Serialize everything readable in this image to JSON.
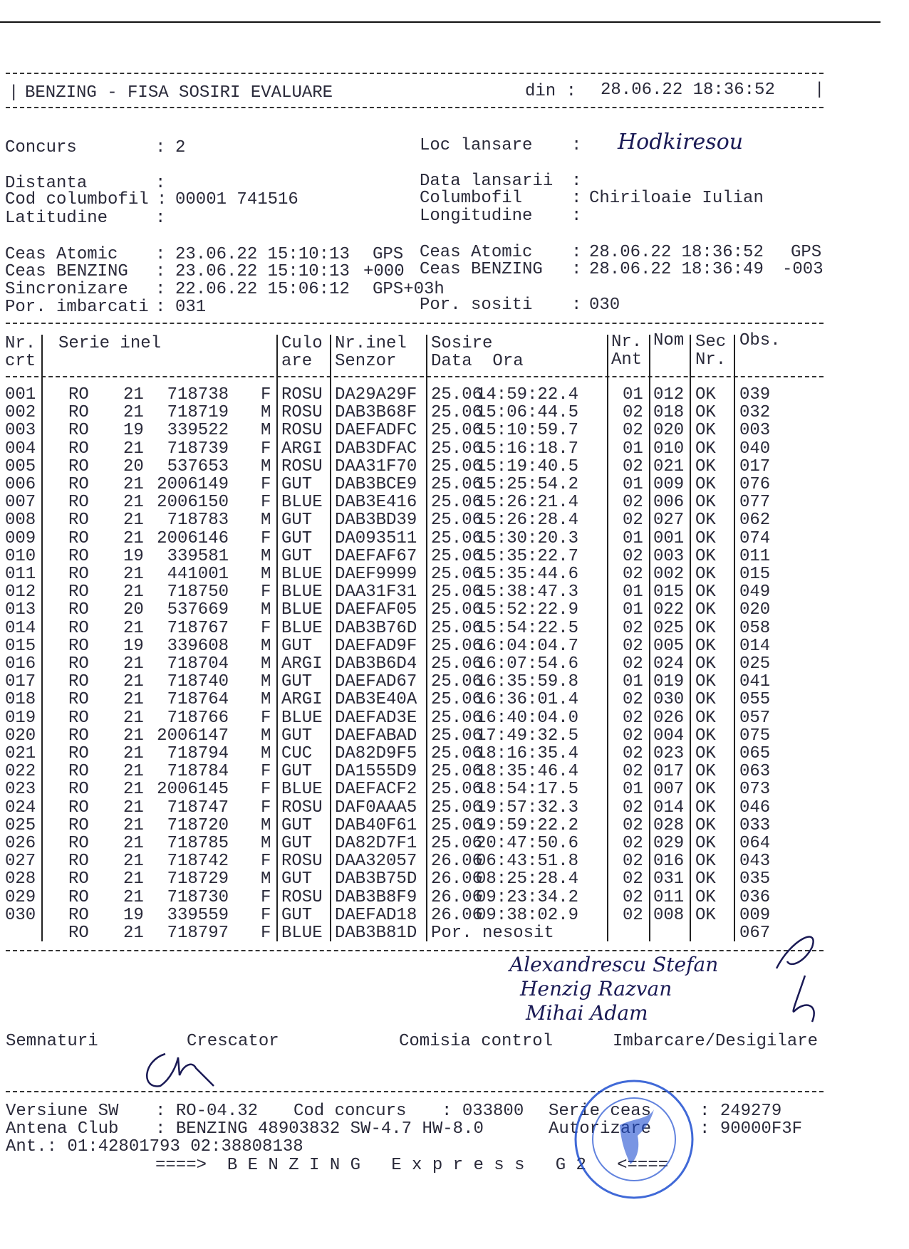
{
  "title_bar": {
    "title": "BENZING - FISA SOSIRI EVALUARE",
    "din_label": "din :",
    "din_value": "28.06.22 18:36:52"
  },
  "info": {
    "concurs": {
      "label": "Concurs",
      "value": "2"
    },
    "loc_lansare": {
      "label": "Loc lansare",
      "value": "Hodkiresou"
    },
    "distanta": {
      "label": "Distanta",
      "value": ""
    },
    "data_lansarii": {
      "label": "Data lansarii",
      "value": ""
    },
    "cod_columbofil": {
      "label": "Cod columbofil",
      "value": "00001 741516"
    },
    "columbofil": {
      "label": "Columbofil",
      "value": "Chiriloaie Iulian"
    },
    "latitudine": {
      "label": "Latitudine",
      "value": ""
    },
    "longitudine": {
      "label": "Longitudine",
      "value": ""
    },
    "ceas_atomic_left": {
      "label": "Ceas Atomic",
      "value": "23.06.22 15:10:13",
      "suffix": "GPS"
    },
    "ceas_benzing_left": {
      "label": "Ceas BENZING",
      "value": "23.06.22 15:10:13",
      "suffix": "+000"
    },
    "ceas_atomic_right": {
      "label": "Ceas Atomic",
      "value": "28.06.22 18:36:52",
      "suffix": "GPS"
    },
    "ceas_benzing_right": {
      "label": "Ceas BENZING",
      "value": "28.06.22 18:36:49",
      "suffix": "-003"
    },
    "sincronizare": {
      "label": "Sincronizare",
      "value": "22.06.22 15:06:12",
      "suffix": "GPS+03h"
    },
    "por_imbarcati": {
      "label": "Por. imbarcati",
      "value": "031"
    },
    "por_sositi": {
      "label": "Por. sositi",
      "value": "030"
    }
  },
  "table": {
    "headers": {
      "nr": [
        "Nr.",
        "crt"
      ],
      "serie": "Serie inel",
      "culoare": [
        "Culo",
        "are"
      ],
      "senzor": [
        "Nr.inel",
        "Senzor"
      ],
      "sosire": [
        "Sosire",
        "Data  Ora"
      ],
      "ant": [
        "Nr.",
        "Ant"
      ],
      "nom": "Nom",
      "sec": [
        "Sec",
        "Nr."
      ],
      "obs": "Obs."
    },
    "rows": [
      [
        "001",
        "RO",
        "21",
        "718738",
        "F",
        "ROSU",
        "DA29A29F",
        "25.06",
        "14:59:22.4",
        "01",
        "012",
        "OK",
        "039"
      ],
      [
        "002",
        "RO",
        "21",
        "718719",
        "M",
        "ROSU",
        "DAB3B68F",
        "25.06",
        "15:06:44.5",
        "02",
        "018",
        "OK",
        "032"
      ],
      [
        "003",
        "RO",
        "19",
        "339522",
        "M",
        "ROSU",
        "DAEFADFC",
        "25.06",
        "15:10:59.7",
        "02",
        "020",
        "OK",
        "003"
      ],
      [
        "004",
        "RO",
        "21",
        "718739",
        "F",
        "ARGI",
        "DAB3DFAC",
        "25.06",
        "15:16:18.7",
        "01",
        "010",
        "OK",
        "040"
      ],
      [
        "005",
        "RO",
        "20",
        "537653",
        "M",
        "ROSU",
        "DAA31F70",
        "25.06",
        "15:19:40.5",
        "02",
        "021",
        "OK",
        "017"
      ],
      [
        "006",
        "RO",
        "21",
        "2006149",
        "F",
        "GUT",
        "DAB3BCE9",
        "25.06",
        "15:25:54.2",
        "01",
        "009",
        "OK",
        "076"
      ],
      [
        "007",
        "RO",
        "21",
        "2006150",
        "F",
        "BLUE",
        "DAB3E416",
        "25.06",
        "15:26:21.4",
        "02",
        "006",
        "OK",
        "077"
      ],
      [
        "008",
        "RO",
        "21",
        "718783",
        "M",
        "GUT",
        "DAB3BD39",
        "25.06",
        "15:26:28.4",
        "02",
        "027",
        "OK",
        "062"
      ],
      [
        "009",
        "RO",
        "21",
        "2006146",
        "F",
        "GUT",
        "DA093511",
        "25.06",
        "15:30:20.3",
        "01",
        "001",
        "OK",
        "074"
      ],
      [
        "010",
        "RO",
        "19",
        "339581",
        "M",
        "GUT",
        "DAEFAF67",
        "25.06",
        "15:35:22.7",
        "02",
        "003",
        "OK",
        "011"
      ],
      [
        "011",
        "RO",
        "21",
        "441001",
        "M",
        "BLUE",
        "DAEF9999",
        "25.06",
        "15:35:44.6",
        "02",
        "002",
        "OK",
        "015"
      ],
      [
        "012",
        "RO",
        "21",
        "718750",
        "F",
        "BLUE",
        "DAA31F31",
        "25.06",
        "15:38:47.3",
        "01",
        "015",
        "OK",
        "049"
      ],
      [
        "013",
        "RO",
        "20",
        "537669",
        "M",
        "BLUE",
        "DAEFAF05",
        "25.06",
        "15:52:22.9",
        "01",
        "022",
        "OK",
        "020"
      ],
      [
        "014",
        "RO",
        "21",
        "718767",
        "F",
        "BLUE",
        "DAB3B76D",
        "25.06",
        "15:54:22.5",
        "02",
        "025",
        "OK",
        "058"
      ],
      [
        "015",
        "RO",
        "19",
        "339608",
        "M",
        "GUT",
        "DAEFAD9F",
        "25.06",
        "16:04:04.7",
        "02",
        "005",
        "OK",
        "014"
      ],
      [
        "016",
        "RO",
        "21",
        "718704",
        "M",
        "ARGI",
        "DAB3B6D4",
        "25.06",
        "16:07:54.6",
        "02",
        "024",
        "OK",
        "025"
      ],
      [
        "017",
        "RO",
        "21",
        "718740",
        "M",
        "GUT",
        "DAEFAD67",
        "25.06",
        "16:35:59.8",
        "01",
        "019",
        "OK",
        "041"
      ],
      [
        "018",
        "RO",
        "21",
        "718764",
        "M",
        "ARGI",
        "DAB3E40A",
        "25.06",
        "16:36:01.4",
        "02",
        "030",
        "OK",
        "055"
      ],
      [
        "019",
        "RO",
        "21",
        "718766",
        "F",
        "BLUE",
        "DAEFAD3E",
        "25.06",
        "16:40:04.0",
        "02",
        "026",
        "OK",
        "057"
      ],
      [
        "020",
        "RO",
        "21",
        "2006147",
        "M",
        "GUT",
        "DAEFABAD",
        "25.06",
        "17:49:32.5",
        "02",
        "004",
        "OK",
        "075"
      ],
      [
        "021",
        "RO",
        "21",
        "718794",
        "M",
        "CUC",
        "DA82D9F5",
        "25.06",
        "18:16:35.4",
        "02",
        "023",
        "OK",
        "065"
      ],
      [
        "022",
        "RO",
        "21",
        "718784",
        "F",
        "GUT",
        "DA1555D9",
        "25.06",
        "18:35:46.4",
        "02",
        "017",
        "OK",
        "063"
      ],
      [
        "023",
        "RO",
        "21",
        "2006145",
        "F",
        "BLUE",
        "DAEFACF2",
        "25.06",
        "18:54:17.5",
        "01",
        "007",
        "OK",
        "073"
      ],
      [
        "024",
        "RO",
        "21",
        "718747",
        "F",
        "ROSU",
        "DAF0AAA5",
        "25.06",
        "19:57:32.3",
        "02",
        "014",
        "OK",
        "046"
      ],
      [
        "025",
        "RO",
        "21",
        "718720",
        "M",
        "GUT",
        "DAB40F61",
        "25.06",
        "19:59:22.2",
        "02",
        "028",
        "OK",
        "033"
      ],
      [
        "026",
        "RO",
        "21",
        "718785",
        "M",
        "GUT",
        "DA82D7F1",
        "25.06",
        "20:47:50.6",
        "02",
        "029",
        "OK",
        "064"
      ],
      [
        "027",
        "RO",
        "21",
        "718742",
        "F",
        "ROSU",
        "DAA32057",
        "26.06",
        "06:43:51.8",
        "02",
        "016",
        "OK",
        "043"
      ],
      [
        "028",
        "RO",
        "21",
        "718729",
        "M",
        "GUT",
        "DAB3B75D",
        "26.06",
        "08:25:28.4",
        "02",
        "031",
        "OK",
        "035"
      ],
      [
        "029",
        "RO",
        "21",
        "718730",
        "F",
        "ROSU",
        "DAB3B8F9",
        "26.06",
        "09:23:34.2",
        "02",
        "011",
        "OK",
        "036"
      ],
      [
        "030",
        "RO",
        "19",
        "339559",
        "F",
        "GUT",
        "DAEFAD18",
        "26.06",
        "09:38:02.9",
        "02",
        "008",
        "OK",
        "009"
      ],
      [
        "",
        "RO",
        "21",
        "718797",
        "F",
        "BLUE",
        "DAB3B81D",
        "Por. nesosit",
        "",
        "",
        "",
        "",
        "067"
      ]
    ]
  },
  "signatures": {
    "label": "Semnaturi",
    "crescator": "Crescator",
    "comisia": "Comisia control",
    "imbarcare": "Imbarcare/Desigilare",
    "handwritten": [
      "Alexandrescu Stefan",
      "Henzig Razvan",
      "Mihai Adam"
    ]
  },
  "footer": {
    "versiune": {
      "label": "Versiune SW",
      "value": "RO-04.32"
    },
    "cod_concurs": {
      "label": "Cod concurs",
      "value": "033800"
    },
    "serie_ceas": {
      "label": "Serie ceas",
      "value": "249279"
    },
    "antena": {
      "label": "Antena Club",
      "value": "BENZING 48903832 SW-4.7 HW-8.0"
    },
    "autorizare": {
      "label": "Autorizare",
      "value": "90000F3F"
    },
    "ant": "Ant.: 01:42801793 02:38808138",
    "banner": "====>  B E N Z I N G   E x p r e s s   G 2   <===="
  },
  "colors": {
    "ink": "#2a2a3a",
    "stamp": "#1f4fd0",
    "handwriting": "#1a1a55"
  }
}
